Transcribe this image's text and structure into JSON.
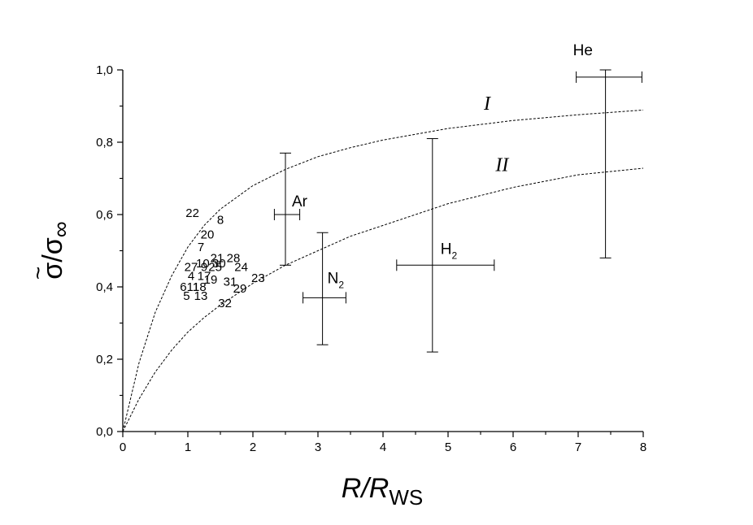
{
  "chart_data": {
    "type": "scatter",
    "xlabel": {
      "main": "R/R",
      "sub": "WS"
    },
    "ylabel": {
      "tilde": "~",
      "main": "σ/σ",
      "sub": "∞"
    },
    "xlim": [
      0,
      8
    ],
    "ylim": [
      0,
      1.0
    ],
    "x_ticks": [
      "0",
      "1",
      "2",
      "3",
      "4",
      "5",
      "6",
      "7",
      "8"
    ],
    "y_ticks": [
      "0,0",
      "0,2",
      "0,4",
      "0,6",
      "0,8",
      "1,0"
    ],
    "grid": false,
    "curves": [
      {
        "label": "I",
        "style": "dashed",
        "x": [
          0,
          0.25,
          0.5,
          0.75,
          1,
          1.25,
          1.5,
          2,
          2.5,
          3,
          3.5,
          4,
          5,
          6,
          7,
          8
        ],
        "y": [
          0,
          0.19,
          0.33,
          0.43,
          0.51,
          0.57,
          0.615,
          0.68,
          0.725,
          0.76,
          0.785,
          0.806,
          0.838,
          0.86,
          0.876,
          0.889
        ]
      },
      {
        "label": "II",
        "style": "dashed",
        "x": [
          0,
          0.25,
          0.5,
          0.75,
          1,
          1.25,
          1.5,
          2,
          2.5,
          3,
          3.5,
          4,
          5,
          6,
          7,
          8
        ],
        "y": [
          0,
          0.09,
          0.165,
          0.225,
          0.275,
          0.315,
          0.35,
          0.41,
          0.46,
          0.5,
          0.54,
          0.57,
          0.63,
          0.675,
          0.71,
          0.728
        ]
      }
    ],
    "gases": [
      {
        "name": "Ar",
        "sub": "",
        "x": 2.5,
        "y": 0.6,
        "x_err": [
          2.33,
          2.72
        ],
        "y_err": [
          0.46,
          0.77
        ]
      },
      {
        "name": "N",
        "sub": "2",
        "x": 3.07,
        "y": 0.37,
        "x_err": [
          2.77,
          3.43
        ],
        "y_err": [
          0.24,
          0.55
        ]
      },
      {
        "name": "H",
        "sub": "2",
        "x": 4.76,
        "y": 0.46,
        "x_err": [
          4.21,
          5.71
        ],
        "y_err": [
          0.22,
          0.81
        ]
      },
      {
        "name": "He",
        "sub": "",
        "x": 7.42,
        "y": 0.98,
        "x_err": [
          6.97,
          7.98
        ],
        "y_err": [
          0.48,
          1.0
        ]
      }
    ],
    "points": [
      {
        "label": "22",
        "x": 1.07,
        "y": 0.605
      },
      {
        "label": "8",
        "x": 1.5,
        "y": 0.585
      },
      {
        "label": "20",
        "x": 1.3,
        "y": 0.545
      },
      {
        "label": "7",
        "x": 1.2,
        "y": 0.51
      },
      {
        "label": "21",
        "x": 1.45,
        "y": 0.48
      },
      {
        "label": "28",
        "x": 1.7,
        "y": 0.48
      },
      {
        "label": "10",
        "x": 1.23,
        "y": 0.465
      },
      {
        "label": "30",
        "x": 1.48,
        "y": 0.465
      },
      {
        "label": "27",
        "x": 1.05,
        "y": 0.455
      },
      {
        "label": "9",
        "x": 1.25,
        "y": 0.455
      },
      {
        "label": "25",
        "x": 1.42,
        "y": 0.455
      },
      {
        "label": "24",
        "x": 1.82,
        "y": 0.455
      },
      {
        "label": "4",
        "x": 1.05,
        "y": 0.43
      },
      {
        "label": "17",
        "x": 1.25,
        "y": 0.43
      },
      {
        "label": "23",
        "x": 2.08,
        "y": 0.425
      },
      {
        "label": "19",
        "x": 1.35,
        "y": 0.42
      },
      {
        "label": "31",
        "x": 1.65,
        "y": 0.415
      },
      {
        "label": "6",
        "x": 0.93,
        "y": 0.4
      },
      {
        "label": "11",
        "x": 1.08,
        "y": 0.4
      },
      {
        "label": "18",
        "x": 1.18,
        "y": 0.4
      },
      {
        "label": "29",
        "x": 1.8,
        "y": 0.395
      },
      {
        "label": "5",
        "x": 0.98,
        "y": 0.375
      },
      {
        "label": "13",
        "x": 1.2,
        "y": 0.375
      },
      {
        "label": "32",
        "x": 1.57,
        "y": 0.355
      }
    ],
    "curve_labels": [
      {
        "text": "I",
        "x": 5.55,
        "y": 0.89
      },
      {
        "text": "II",
        "x": 5.73,
        "y": 0.72
      }
    ]
  }
}
